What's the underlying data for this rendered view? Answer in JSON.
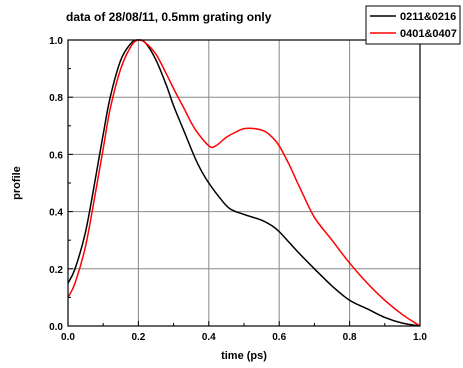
{
  "chart_data": {
    "type": "line",
    "title": "data of 28/08/11, 0.5mm grating only",
    "xlabel": "time (ps)",
    "ylabel": "profile",
    "xlim": [
      0.0,
      1.0
    ],
    "ylim": [
      0.0,
      1.0
    ],
    "xticks": [
      "0.0",
      "0.2",
      "0.4",
      "0.6",
      "0.8",
      "1.0"
    ],
    "yticks": [
      "0.0",
      "0.2",
      "0.4",
      "0.6",
      "0.8",
      "1.0"
    ],
    "grid": true,
    "legend_position": "top-right",
    "series": [
      {
        "name": "0211&0216",
        "color": "#000000",
        "x": [
          0.0,
          0.02,
          0.05,
          0.08,
          0.1,
          0.12,
          0.15,
          0.18,
          0.2,
          0.22,
          0.25,
          0.28,
          0.3,
          0.33,
          0.36,
          0.38,
          0.4,
          0.43,
          0.46,
          0.5,
          0.55,
          0.58,
          0.6,
          0.63,
          0.66,
          0.7,
          0.75,
          0.8,
          0.85,
          0.9,
          0.95,
          1.0
        ],
        "y": [
          0.15,
          0.2,
          0.33,
          0.53,
          0.67,
          0.8,
          0.93,
          0.99,
          1.0,
          0.99,
          0.93,
          0.84,
          0.77,
          0.68,
          0.59,
          0.54,
          0.5,
          0.45,
          0.41,
          0.39,
          0.37,
          0.35,
          0.33,
          0.29,
          0.25,
          0.2,
          0.14,
          0.09,
          0.06,
          0.03,
          0.01,
          0.0
        ]
      },
      {
        "name": "0401&0407",
        "color": "#ff0000",
        "x": [
          0.0,
          0.02,
          0.05,
          0.08,
          0.1,
          0.12,
          0.15,
          0.18,
          0.2,
          0.22,
          0.25,
          0.28,
          0.3,
          0.33,
          0.36,
          0.4,
          0.42,
          0.45,
          0.48,
          0.5,
          0.53,
          0.56,
          0.58,
          0.6,
          0.63,
          0.66,
          0.7,
          0.75,
          0.8,
          0.85,
          0.9,
          0.95,
          1.0
        ],
        "y": [
          0.1,
          0.15,
          0.28,
          0.48,
          0.62,
          0.76,
          0.9,
          0.98,
          1.0,
          0.99,
          0.95,
          0.88,
          0.83,
          0.76,
          0.69,
          0.63,
          0.63,
          0.66,
          0.68,
          0.69,
          0.69,
          0.68,
          0.66,
          0.63,
          0.56,
          0.48,
          0.38,
          0.3,
          0.22,
          0.15,
          0.09,
          0.04,
          0.0
        ]
      }
    ]
  }
}
